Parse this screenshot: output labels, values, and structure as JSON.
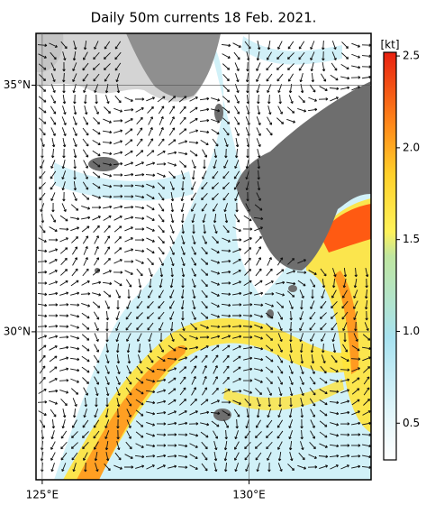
{
  "map": {
    "title": "Daily 50m currents 18 Feb. 2021.",
    "lonlim": [
      124.85,
      132.95
    ],
    "latlim": [
      27,
      36.05
    ],
    "lon_ticks": [
      {
        "value": 125,
        "label": "125°E"
      },
      {
        "value": 130,
        "label": "130°E"
      }
    ],
    "lat_ticks": [
      {
        "value": 35,
        "label": "35°N"
      },
      {
        "value": 30,
        "label": "30°N"
      }
    ],
    "colorbar": {
      "unit": "[kt]",
      "lim": [
        0.3,
        2.52
      ],
      "ticks": [
        0.5,
        {
          "value": 1,
          "label": "1.0"
        },
        1.5,
        {
          "value": 2,
          "label": "2.0"
        },
        2.5
      ]
    }
  }
}
